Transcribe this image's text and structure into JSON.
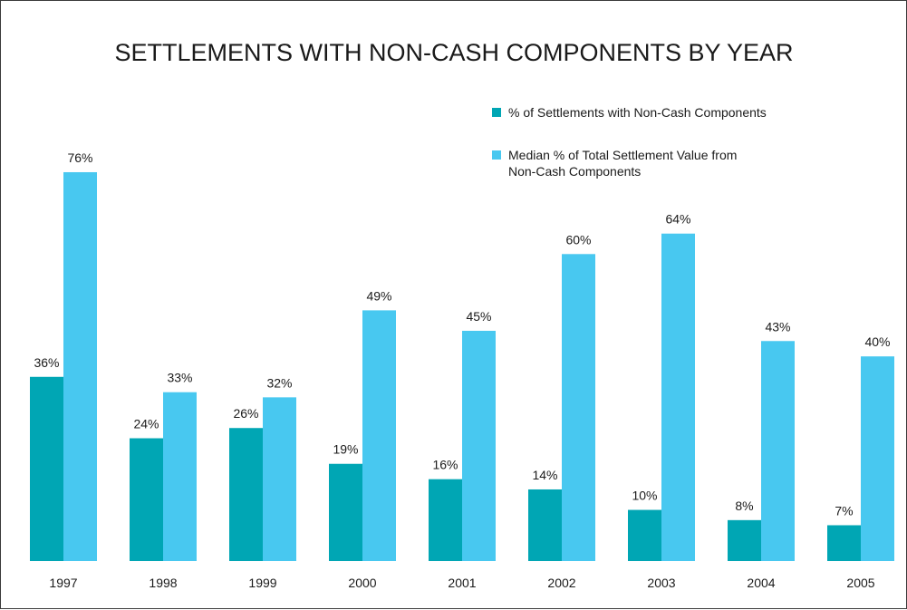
{
  "chart_data": {
    "type": "bar",
    "title": "SETTLEMENTS WITH NON-CASH COMPONENTS BY YEAR",
    "xlabel": "",
    "ylabel": "",
    "ylim": [
      0,
      80
    ],
    "grid": false,
    "legend_position": "top-right",
    "categories": [
      "1997",
      "1998",
      "1999",
      "2000",
      "2001",
      "2002",
      "2003",
      "2004",
      "2005"
    ],
    "series": [
      {
        "name": "% of Settlements with Non-Cash Components",
        "color": "#00a6b4",
        "values": [
          36,
          24,
          26,
          19,
          16,
          14,
          10,
          8,
          7
        ],
        "labels": [
          "36%",
          "24%",
          "26%",
          "19%",
          "16%",
          "14%",
          "10%",
          "8%",
          "7%"
        ]
      },
      {
        "name": "Median % of Total Settlement Value from Non-Cash Components",
        "name_lines": [
          "Median % of Total Settlement Value from",
          "Non-Cash Components"
        ],
        "color": "#48c8f0",
        "values": [
          76,
          33,
          32,
          49,
          45,
          60,
          64,
          43,
          40
        ],
        "labels": [
          "76%",
          "33%",
          "32%",
          "49%",
          "45%",
          "60%",
          "64%",
          "43%",
          "40%"
        ]
      }
    ]
  }
}
